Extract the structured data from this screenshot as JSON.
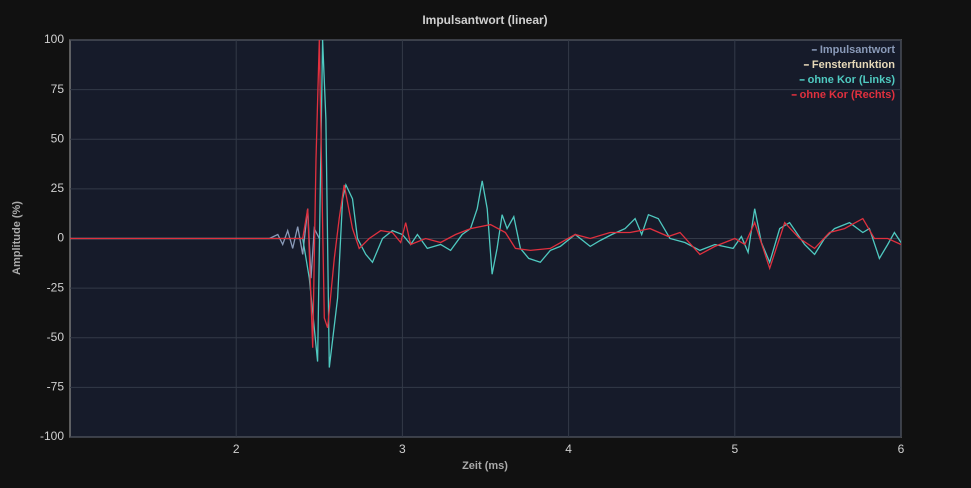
{
  "chart_data": {
    "type": "line",
    "title": "Impulsantwort (linear)",
    "x_label": "Zeit (ms)",
    "y_label": "Amplitude (%)",
    "xlim": [
      1,
      6
    ],
    "xticks": [
      2,
      3,
      4,
      5,
      6
    ],
    "ylim": [
      -100,
      100
    ],
    "yticks": [
      100,
      75,
      50,
      25,
      0,
      -25,
      -50,
      -75,
      -100
    ],
    "grid": true,
    "legend": "top-right",
    "series": [
      {
        "name": "Impulsantwort",
        "color": "#8a9ab8",
        "x": [
          1.0,
          2.2,
          2.25,
          2.28,
          2.31,
          2.34,
          2.37,
          2.4,
          2.43,
          2.45,
          2.47,
          2.5
        ],
        "values": [
          0,
          0,
          2,
          -3,
          4,
          -5,
          6,
          -8,
          15,
          -20,
          5,
          0
        ]
      },
      {
        "name": "Fensterfunktion",
        "color": "#e6d8b8",
        "x": [],
        "values": []
      },
      {
        "name": "ohne Kor (Links)",
        "color": "#4fc9c0",
        "x": [
          1.0,
          2.4,
          2.44,
          2.49,
          2.52,
          2.54,
          2.56,
          2.61,
          2.64,
          2.66,
          2.7,
          2.73,
          2.78,
          2.82,
          2.88,
          2.94,
          3.0,
          3.05,
          3.09,
          3.15,
          3.23,
          3.29,
          3.36,
          3.41,
          3.45,
          3.48,
          3.51,
          3.54,
          3.57,
          3.6,
          3.63,
          3.67,
          3.71,
          3.76,
          3.83,
          3.89,
          3.95,
          4.04,
          4.13,
          4.19,
          4.26,
          4.34,
          4.4,
          4.44,
          4.48,
          4.54,
          4.61,
          4.7,
          4.79,
          4.88,
          4.99,
          5.04,
          5.08,
          5.12,
          5.16,
          5.21,
          5.27,
          5.33,
          5.42,
          5.48,
          5.54,
          5.6,
          5.69,
          5.77,
          5.81,
          5.87,
          5.92,
          5.96,
          6.0
        ],
        "values": [
          0,
          0,
          -20,
          -62,
          100,
          60,
          -65,
          -30,
          20,
          27,
          20,
          0,
          -8,
          -12,
          0,
          4,
          2,
          -3,
          2,
          -5,
          -3,
          -6,
          2,
          5,
          15,
          29,
          15,
          -18,
          -5,
          12,
          5,
          11,
          -5,
          -10,
          -12,
          -6,
          -4,
          2,
          -4,
          -1,
          2,
          5,
          10,
          2,
          12,
          10,
          0,
          -2,
          -6,
          -3,
          -5,
          1,
          -7,
          15,
          -2,
          -12,
          5,
          8,
          -3,
          -8,
          0,
          5,
          8,
          3,
          5,
          -10,
          -3,
          3,
          -2
        ]
      },
      {
        "name": "ohne Kor (Rechts)",
        "color": "#e0303e",
        "x": [
          1.0,
          2.4,
          2.43,
          2.46,
          2.48,
          2.5,
          2.53,
          2.55,
          2.59,
          2.62,
          2.65,
          2.7,
          2.74,
          2.8,
          2.87,
          2.94,
          2.99,
          3.02,
          3.05,
          3.14,
          3.23,
          3.32,
          3.41,
          3.53,
          3.62,
          3.68,
          3.77,
          3.89,
          4.04,
          4.13,
          4.25,
          4.37,
          4.49,
          4.6,
          4.67,
          4.79,
          4.88,
          5.0,
          5.06,
          5.12,
          5.21,
          5.3,
          5.39,
          5.48,
          5.57,
          5.66,
          5.77,
          5.84,
          5.92,
          6.0
        ],
        "values": [
          0,
          0,
          15,
          -55,
          40,
          100,
          -40,
          -45,
          -10,
          10,
          27,
          5,
          -5,
          0,
          4,
          3,
          -2,
          8,
          -3,
          0,
          -2,
          2,
          5,
          7,
          3,
          -5,
          -6,
          -5,
          2,
          0,
          3,
          3,
          5,
          1,
          3,
          -8,
          -4,
          0,
          -3,
          8,
          -15,
          8,
          0,
          -5,
          3,
          5,
          10,
          0,
          0,
          -3
        ]
      }
    ]
  }
}
